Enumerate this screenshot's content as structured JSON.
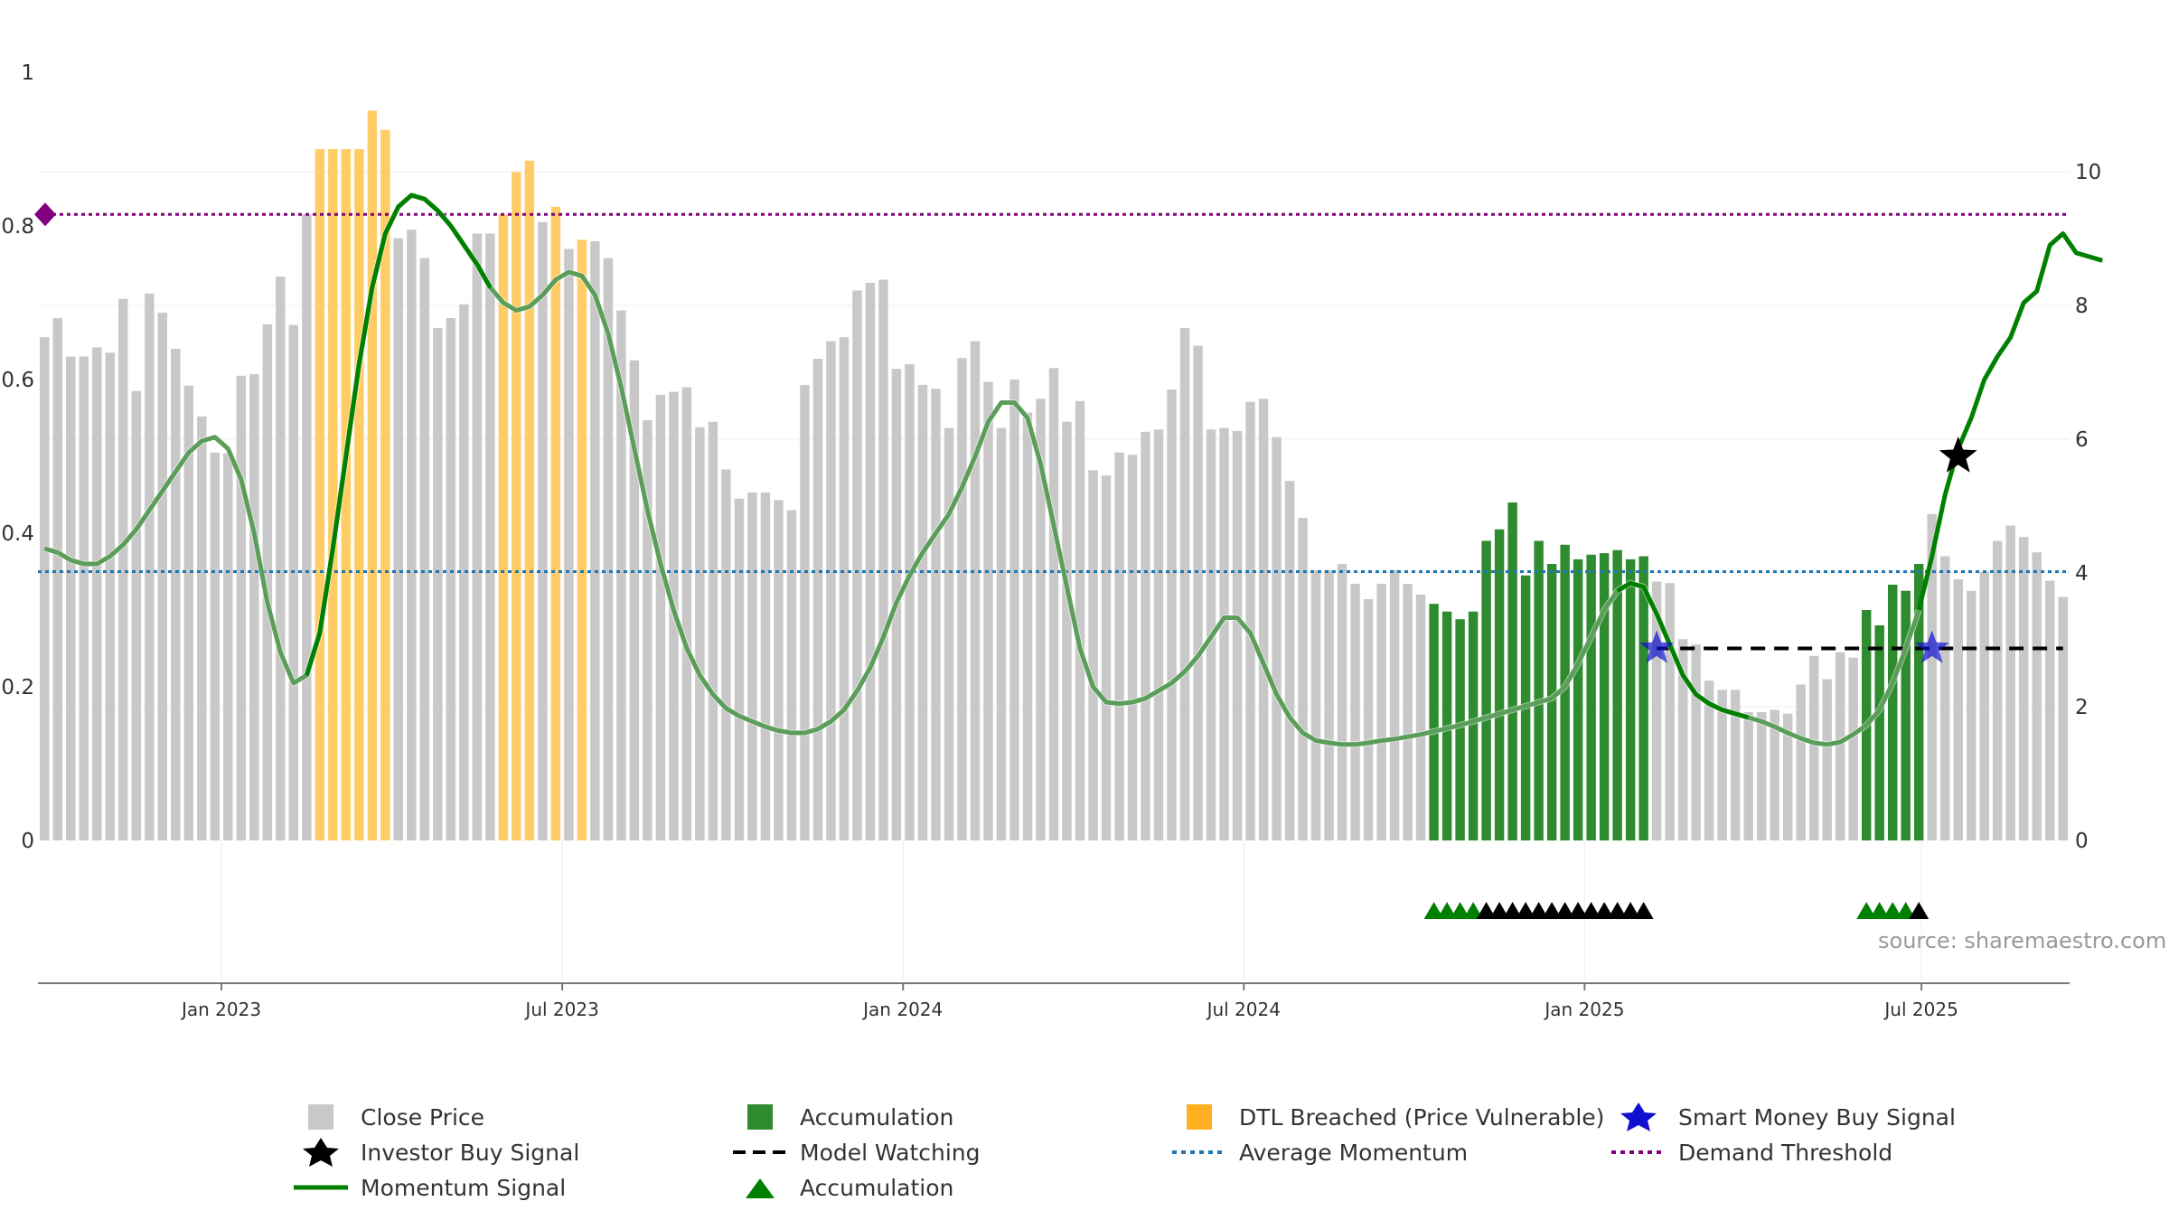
{
  "chart_data": {
    "type": "bar",
    "source": "source: sharemaestro.com",
    "left_axis": {
      "ylim": [
        0,
        1
      ],
      "ticks": [
        "0",
        "0.2",
        "0.4",
        "0.6",
        "0.8",
        "1"
      ]
    },
    "right_axis": {
      "ylim": [
        0,
        10
      ],
      "ticks": [
        "0",
        "2",
        "4",
        "6",
        "8",
        "10"
      ]
    },
    "x_ticks": [
      "Jan 2023",
      "Jul 2023",
      "Jan 2024",
      "Jul 2024",
      "Jan 2025",
      "Jul 2025"
    ],
    "demand_threshold": 0.815,
    "average_momentum": 0.35,
    "model_watching_level": 0.25,
    "close_price": [
      0.655,
      0.68,
      0.63,
      0.63,
      0.642,
      0.635,
      0.705,
      0.585,
      0.712,
      0.687,
      0.64,
      0.592,
      0.552,
      0.505,
      0.504,
      0.605,
      0.607,
      0.672,
      0.734,
      0.671,
      0.815,
      0.9,
      0.9,
      0.9,
      0.9,
      0.95,
      0.925,
      0.784,
      0.795,
      0.758,
      0.667,
      0.68,
      0.698,
      0.79,
      0.79,
      0.815,
      0.87,
      0.885,
      0.805,
      0.825,
      0.77,
      0.782,
      0.78,
      0.758,
      0.69,
      0.625,
      0.547,
      0.58,
      0.584,
      0.59,
      0.538,
      0.545,
      0.483,
      0.445,
      0.453,
      0.453,
      0.443,
      0.43,
      0.593,
      0.627,
      0.65,
      0.655,
      0.716,
      0.726,
      0.73,
      0.614,
      0.62,
      0.593,
      0.588,
      0.537,
      0.628,
      0.65,
      0.597,
      0.537,
      0.6,
      0.557,
      0.575,
      0.615,
      0.545,
      0.572,
      0.482,
      0.475,
      0.505,
      0.502,
      0.532,
      0.535,
      0.587,
      0.667,
      0.644,
      0.535,
      0.537,
      0.533,
      0.571,
      0.575,
      0.525,
      0.468,
      0.42,
      0.352,
      0.352,
      0.36,
      0.334,
      0.314,
      0.334,
      0.352,
      0.334,
      0.32,
      0.308,
      0.298,
      0.288,
      0.298,
      0.39,
      0.405,
      0.44,
      0.345,
      0.39,
      0.36,
      0.385,
      0.366,
      0.372,
      0.374,
      0.378,
      0.366,
      0.37,
      0.337,
      0.335,
      0.262,
      0.255,
      0.208,
      0.196,
      0.196,
      0.167,
      0.167,
      0.17,
      0.165,
      0.203,
      0.24,
      0.21,
      0.245,
      0.238,
      0.3,
      0.28,
      0.333,
      0.325,
      0.36,
      0.425,
      0.37,
      0.34,
      0.325,
      0.35,
      0.39,
      0.41,
      0.395,
      0.375,
      0.338,
      0.317
    ],
    "dtl_breached_ranges": [
      [
        21,
        26
      ],
      [
        35,
        37
      ],
      [
        39,
        39
      ],
      [
        41,
        41
      ]
    ],
    "accumulation_ranges": [
      [
        106,
        122
      ],
      [
        139,
        143
      ]
    ],
    "momentum_signal": [
      0.38,
      0.375,
      0.365,
      0.36,
      0.36,
      0.37,
      0.385,
      0.405,
      0.43,
      0.455,
      0.48,
      0.505,
      0.52,
      0.525,
      0.51,
      0.47,
      0.4,
      0.31,
      0.245,
      0.205,
      0.215,
      0.27,
      0.38,
      0.5,
      0.62,
      0.72,
      0.79,
      0.825,
      0.84,
      0.835,
      0.82,
      0.8,
      0.775,
      0.75,
      0.72,
      0.7,
      0.69,
      0.695,
      0.71,
      0.73,
      0.74,
      0.735,
      0.71,
      0.66,
      0.59,
      0.51,
      0.43,
      0.36,
      0.3,
      0.25,
      0.215,
      0.19,
      0.172,
      0.162,
      0.155,
      0.148,
      0.143,
      0.14,
      0.14,
      0.145,
      0.155,
      0.17,
      0.195,
      0.225,
      0.265,
      0.31,
      0.345,
      0.375,
      0.4,
      0.425,
      0.46,
      0.5,
      0.545,
      0.57,
      0.57,
      0.55,
      0.49,
      0.41,
      0.33,
      0.25,
      0.2,
      0.18,
      0.178,
      0.18,
      0.185,
      0.195,
      0.205,
      0.22,
      0.24,
      0.265,
      0.29,
      0.29,
      0.27,
      0.23,
      0.19,
      0.16,
      0.14,
      0.13,
      0.127,
      0.125,
      0.125,
      0.127,
      0.13,
      0.132,
      0.135,
      0.138,
      0.142,
      0.146,
      0.15,
      0.155,
      0.16,
      0.165,
      0.17,
      0.175,
      0.18,
      0.185,
      0.2,
      0.23,
      0.265,
      0.3,
      0.325,
      0.335,
      0.33,
      0.295,
      0.255,
      0.215,
      0.19,
      0.178,
      0.17,
      0.165,
      0.16,
      0.155,
      0.148,
      0.14,
      0.133,
      0.127,
      0.125,
      0.128,
      0.138,
      0.15,
      0.17,
      0.205,
      0.25,
      0.3,
      0.37,
      0.45,
      0.51,
      0.55,
      0.6,
      0.63,
      0.655,
      0.7,
      0.715,
      0.775,
      0.79,
      0.765,
      0.76,
      0.755
    ],
    "momentum_signal_solid_from_index": 143,
    "investor_buy_signal": {
      "index": 146,
      "value": 0.5
    },
    "smart_money_buy_signal_indices": [
      123,
      144
    ],
    "accumulation_markers": {
      "green_indices": [
        106,
        107,
        108,
        109,
        139,
        140,
        141,
        142
      ],
      "black_indices": [
        110,
        111,
        112,
        113,
        114,
        115,
        116,
        117,
        118,
        119,
        120,
        121,
        122,
        143
      ]
    },
    "colors": {
      "close_price": "#c8c8c8",
      "accumulation": "#2e8b2e",
      "dtl_breached": "#ffcc66",
      "momentum": "#008000",
      "momentum_faded": "#5a9e5a",
      "demand_threshold": "#800080",
      "average_momentum": "#1f77b4",
      "model_watching": "#000000",
      "smart_money": "#1010d0"
    }
  },
  "legend": {
    "close_price": "Close Price",
    "accumulation_bar": "Accumulation",
    "dtl_breached": "DTL Breached (Price Vulnerable)",
    "smart_money": "Smart Money Buy Signal",
    "investor_buy": "Investor Buy Signal",
    "model_watching": "Model Watching",
    "average_momentum": "Average Momentum",
    "demand_threshold": "Demand Threshold",
    "momentum_signal": "Momentum Signal",
    "accumulation_marker": "Accumulation"
  }
}
